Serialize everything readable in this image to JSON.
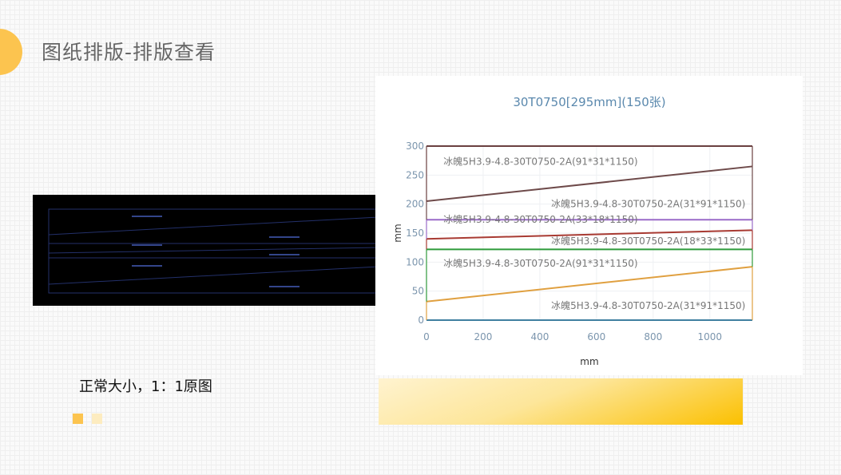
{
  "header": {
    "title": "图纸排版-排版查看"
  },
  "caption": "正常大小，1：1原图",
  "colors": {
    "accent": "#fcc44f",
    "square1": "#fcc44f",
    "square2": "#fdecc0"
  },
  "cad_preview": {
    "label": "cad-drawing-preview"
  },
  "chart_data": {
    "type": "line",
    "title": "30T0750[295mm](150张)",
    "xlabel": "mm",
    "ylabel": "mm",
    "xlim": [
      0,
      1150
    ],
    "ylim": [
      0,
      300
    ],
    "xticks": [
      0,
      200,
      400,
      600,
      800,
      1000
    ],
    "yticks": [
      0,
      50,
      100,
      150,
      200,
      250,
      300
    ],
    "grid": true,
    "series": [
      {
        "color": "#3f7fa0",
        "x": [
          0,
          1150
        ],
        "y": [
          0,
          0
        ],
        "edge_from": [
          0,
          0
        ]
      },
      {
        "color": "#e0a040",
        "x": [
          0,
          1150
        ],
        "y": [
          32,
          92
        ],
        "edge_from": [
          0,
          0
        ]
      },
      {
        "color": "#2e9a3a",
        "x": [
          0,
          1150
        ],
        "y": [
          122,
          122
        ],
        "edge_from": [
          32,
          92
        ]
      },
      {
        "color": "#a83a32",
        "x": [
          0,
          1150
        ],
        "y": [
          140,
          155
        ],
        "edge_from": [
          122,
          122
        ]
      },
      {
        "color": "#9a6ac8",
        "x": [
          0,
          1150
        ],
        "y": [
          173,
          173
        ],
        "edge_from": [
          140,
          155
        ]
      },
      {
        "color": "#6e4a4a",
        "x": [
          0,
          1150
        ],
        "y": [
          205,
          265
        ],
        "edge_from": [
          173,
          173
        ]
      },
      {
        "color": "#6a4040",
        "x": [
          0,
          1150
        ],
        "y": [
          300,
          300
        ],
        "edge_from": [
          205,
          265
        ]
      }
    ],
    "annotations": [
      {
        "text": "冰魄5H3.9-4.8-30T0750-2A(91*31*1150)",
        "x": 60,
        "y": 268
      },
      {
        "text": "冰魄5H3.9-4.8-30T0750-2A(31*91*1150)",
        "x": 440,
        "y": 195
      },
      {
        "text": "冰魄5H3.9-4.8-30T0750-2A(33*18*1150)",
        "x": 60,
        "y": 168
      },
      {
        "text": "冰魄5H3.9-4.8-30T0750-2A(18*33*1150)",
        "x": 440,
        "y": 131
      },
      {
        "text": "冰魄5H3.9-4.8-30T0750-2A(91*31*1150)",
        "x": 60,
        "y": 92
      },
      {
        "text": "冰魄5H3.9-4.8-30T0750-2A(31*91*1150)",
        "x": 440,
        "y": 19
      }
    ]
  }
}
